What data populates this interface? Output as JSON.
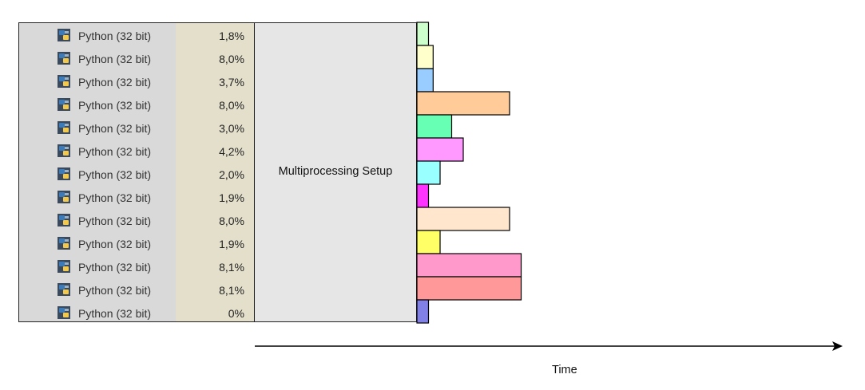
{
  "task_table": {
    "rows": [
      {
        "name": "Python (32 bit)",
        "cpu": "1,8%",
        "bar_duration": 1,
        "bar_color": "#ccffcc"
      },
      {
        "name": "Python (32 bit)",
        "cpu": "8,0%",
        "bar_duration": 1.4,
        "bar_color": "#ffffcc"
      },
      {
        "name": "Python (32 bit)",
        "cpu": "3,7%",
        "bar_duration": 1.4,
        "bar_color": "#99ccff"
      },
      {
        "name": "Python (32 bit)",
        "cpu": "8,0%",
        "bar_duration": 8,
        "bar_color": "#ffcc99"
      },
      {
        "name": "Python (32 bit)",
        "cpu": "3,0%",
        "bar_duration": 3,
        "bar_color": "#66ffb3"
      },
      {
        "name": "Python (32 bit)",
        "cpu": "4,2%",
        "bar_duration": 4,
        "bar_color": "#ff99ff"
      },
      {
        "name": "Python (32 bit)",
        "cpu": "2,0%",
        "bar_duration": 2,
        "bar_color": "#99ffff"
      },
      {
        "name": "Python (32 bit)",
        "cpu": "1,9%",
        "bar_duration": 1,
        "bar_color": "#ff33ff"
      },
      {
        "name": "Python (32 bit)",
        "cpu": "8,0%",
        "bar_duration": 8,
        "bar_color": "#ffe6cc"
      },
      {
        "name": "Python (32 bit)",
        "cpu": "1,9%",
        "bar_duration": 2,
        "bar_color": "#ffff66"
      },
      {
        "name": "Python (32 bit)",
        "cpu": "8,1%",
        "bar_duration": 9,
        "bar_color": "#ff99cc"
      },
      {
        "name": "Python (32 bit)",
        "cpu": "8,1%",
        "bar_duration": 9,
        "bar_color": "#ff9999"
      },
      {
        "name": "Python (32 bit)",
        "cpu": "0%",
        "bar_duration": 1,
        "bar_color": "#8080e6"
      }
    ]
  },
  "setup": {
    "label": "Multiprocessing Setup"
  },
  "axis": {
    "label": "Time"
  },
  "icons": {
    "process": "python-icon",
    "axis_arrow": "arrow-right-icon"
  }
}
